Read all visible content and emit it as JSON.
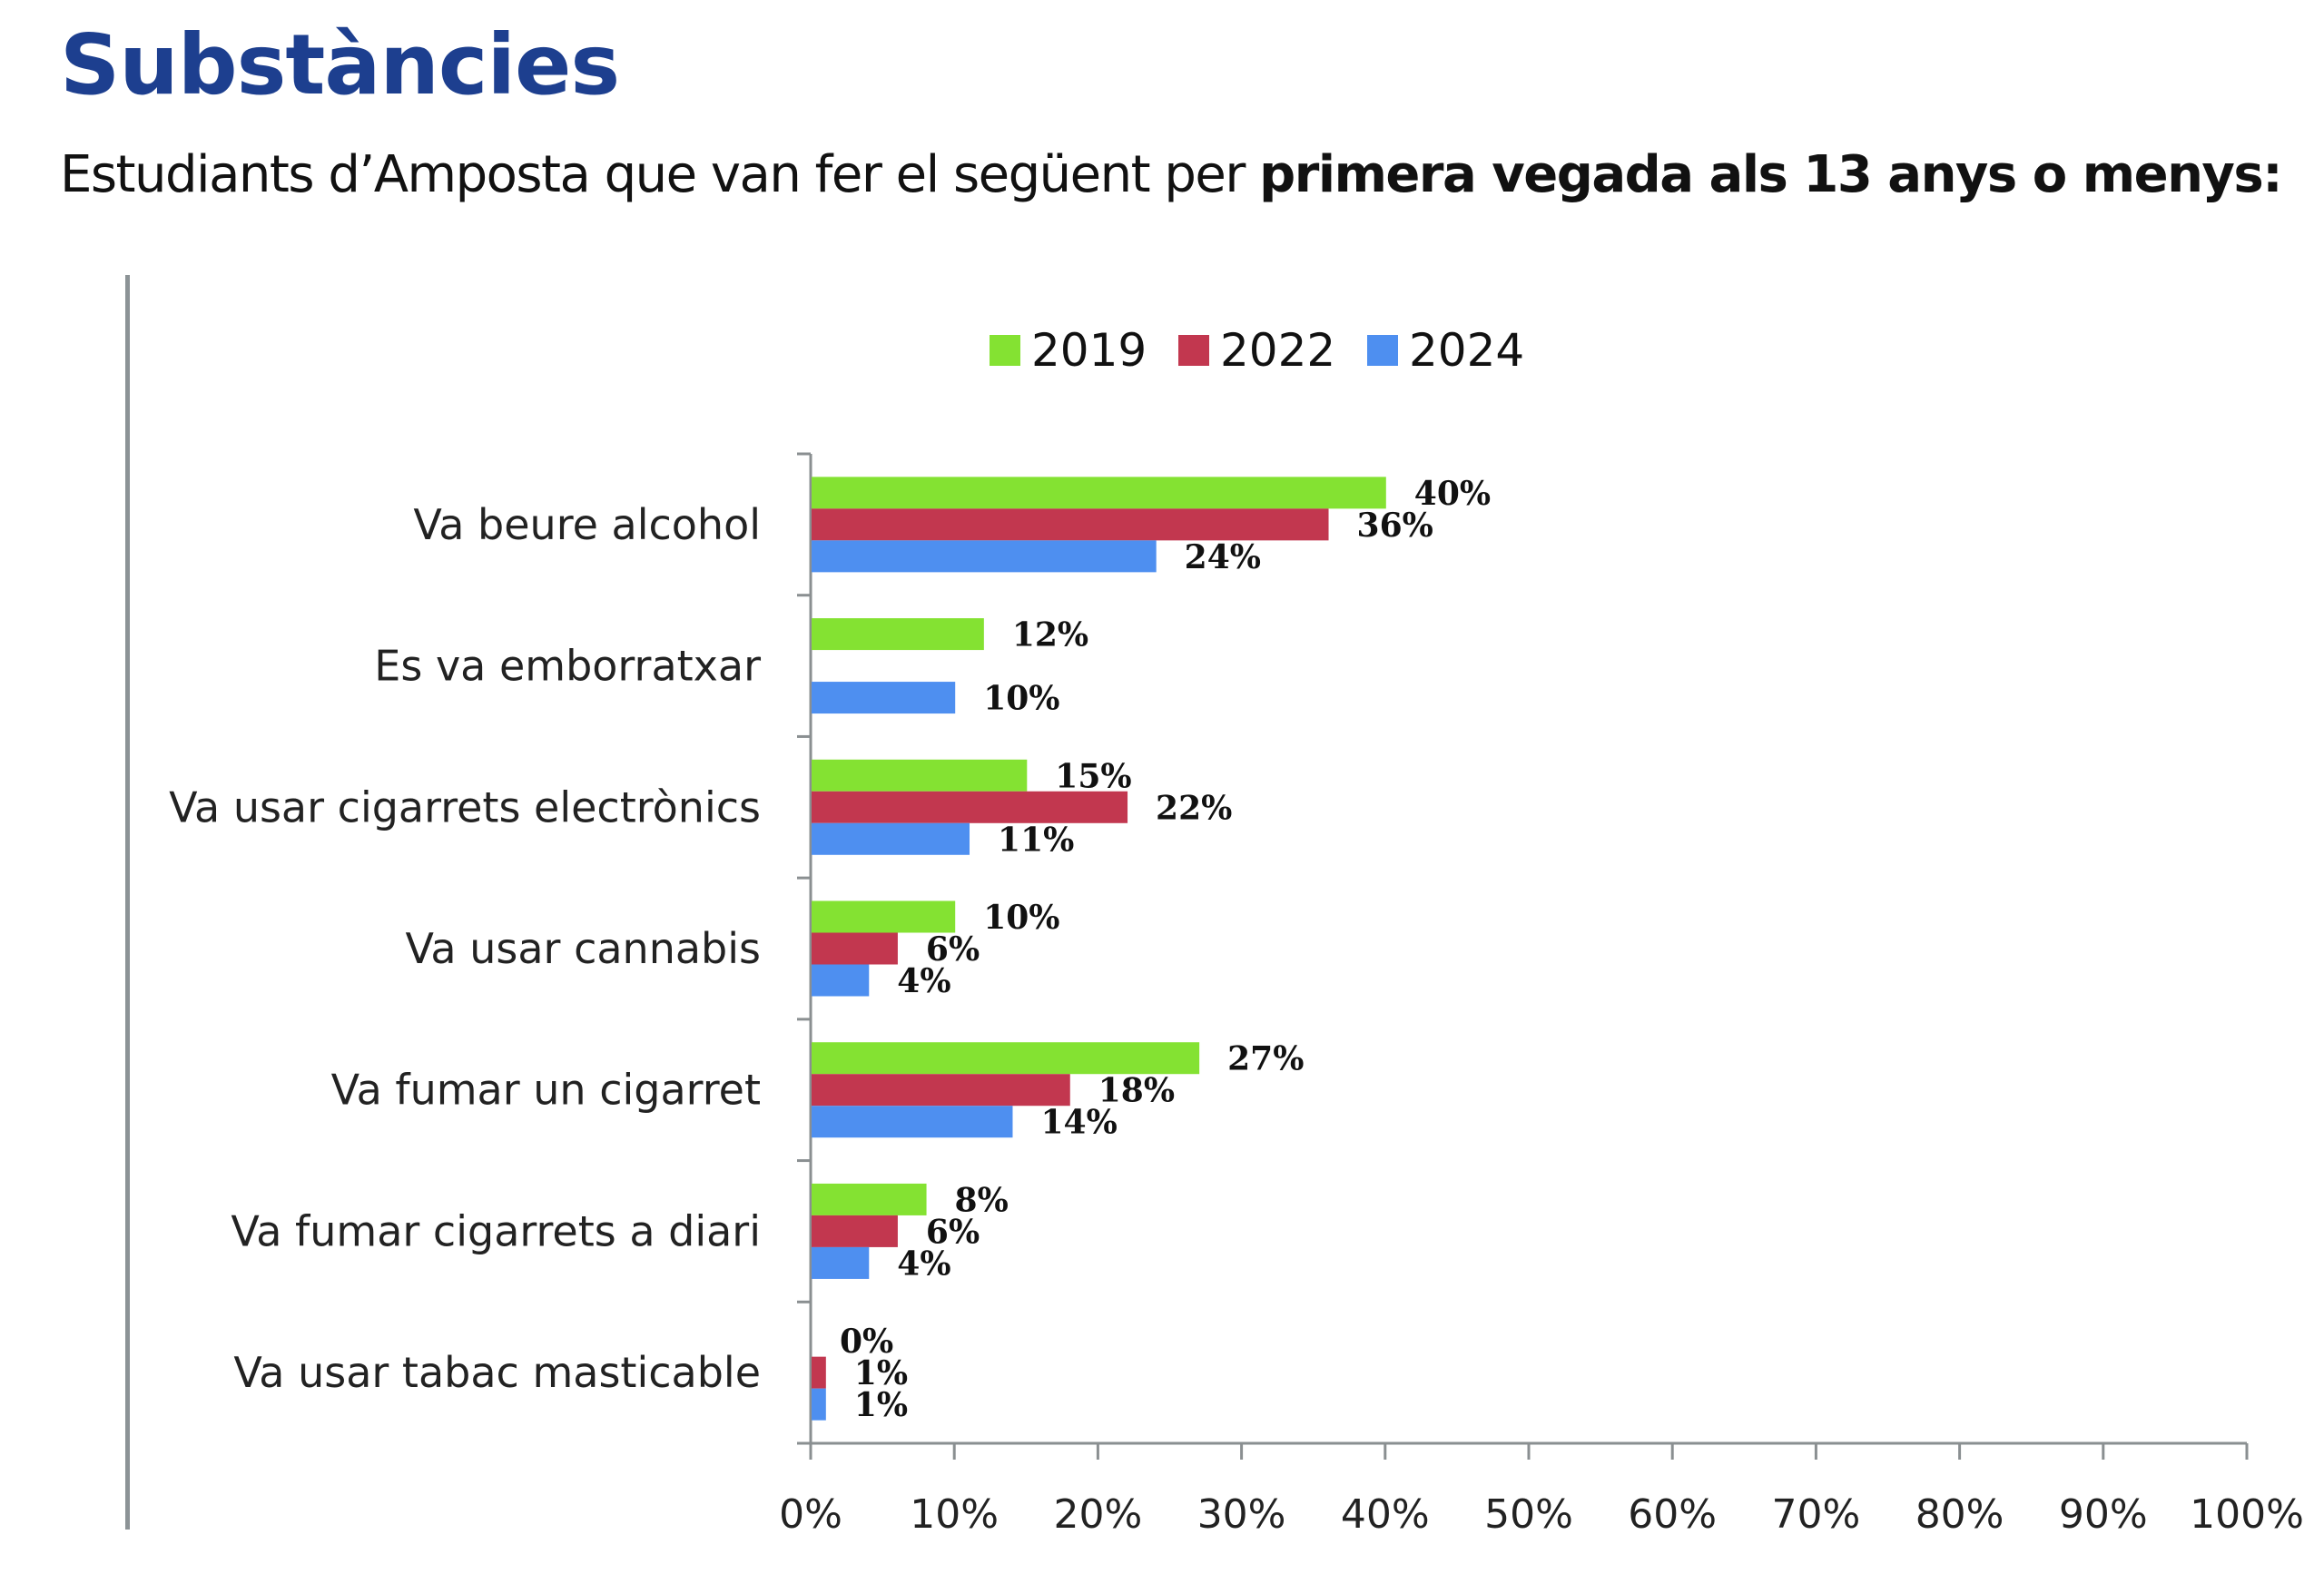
{
  "header": {
    "title": "Substàncies",
    "subtitle_regular": "Estudiants d’Amposta que van fer el següent per ",
    "subtitle_bold": "primera vegada als 13 anys o menys:"
  },
  "chart_data": {
    "type": "bar",
    "orientation": "horizontal",
    "title": "",
    "xlabel": "",
    "ylabel": "",
    "xlim": [
      0,
      100
    ],
    "x_ticks": [
      "0%",
      "10%",
      "20%",
      "30%",
      "40%",
      "50%",
      "60%",
      "70%",
      "80%",
      "90%",
      "100%"
    ],
    "grid": false,
    "legend_position": "top-center",
    "categories": [
      "Va beure alcohol",
      "Es va emborratxar",
      "Va usar cigarrets electrònics",
      "Va usar cannabis",
      "Va fumar un cigarret",
      "Va fumar cigarrets a diari",
      "Va usar tabac masticable"
    ],
    "series": [
      {
        "name": "2019",
        "color": "#84e232",
        "values": [
          40,
          12,
          15,
          10,
          27,
          8,
          0
        ]
      },
      {
        "name": "2022",
        "color": "#c2374f",
        "values": [
          36,
          null,
          22,
          6,
          18,
          6,
          1
        ]
      },
      {
        "name": "2024",
        "color": "#4e8ff0",
        "values": [
          24,
          10,
          11,
          4,
          14,
          4,
          1
        ]
      }
    ],
    "value_suffix": "%"
  }
}
